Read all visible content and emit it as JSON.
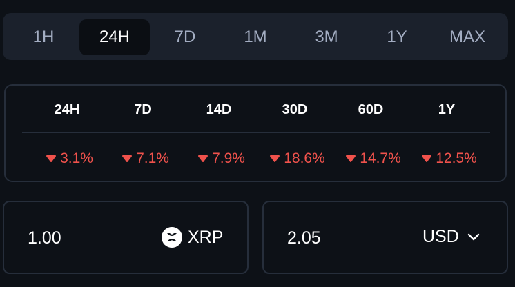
{
  "ranges": [
    "1H",
    "24H",
    "7D",
    "1M",
    "3M",
    "1Y",
    "MAX"
  ],
  "active_range": "24H",
  "changes": [
    {
      "period": "24H",
      "value": "3.1%"
    },
    {
      "period": "7D",
      "value": "7.1%"
    },
    {
      "period": "14D",
      "value": "7.9%"
    },
    {
      "period": "30D",
      "value": "18.6%"
    },
    {
      "period": "60D",
      "value": "14.7%"
    },
    {
      "period": "1Y",
      "value": "12.5%"
    }
  ],
  "converter": {
    "from_amount": "1.00",
    "from_currency": "XRP",
    "to_amount": "2.05",
    "to_currency": "USD"
  },
  "colors": {
    "negative": "#f0524c",
    "panel": "#1b212c",
    "background": "#0d1117"
  },
  "icons": {
    "change_direction": "caret-down-icon",
    "from_currency": "xrp-logo-icon",
    "to_currency": "chevron-down-icon"
  }
}
